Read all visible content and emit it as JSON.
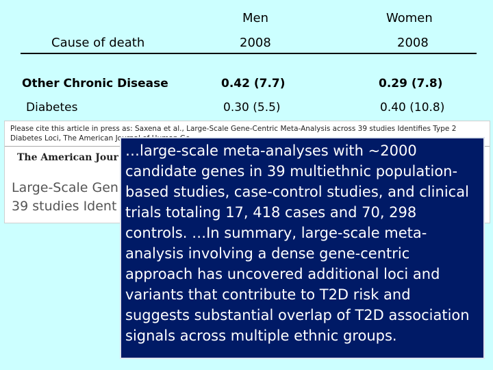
{
  "table": {
    "headers": {
      "men": "Men",
      "women": "Women",
      "cause": "Cause of death",
      "men_year": "2008",
      "women_year": "2008"
    },
    "rows": [
      {
        "cause": "Other Chronic Disease",
        "men": "0.42 (7.7)",
        "women": "0.29 (7.8)"
      },
      {
        "cause": "Diabetes",
        "men": "0.30 (5.5)",
        "women": "0.40 (10.8)"
      }
    ]
  },
  "article": {
    "citation": "Please cite this article in press as: Saxena et al., Large-Scale Gene-Centric Meta-Analysis across 39 studies Identifies Type 2 Diabetes Loci, The American Journal of Human Ge",
    "journal": "The American Jour",
    "title_line1": "Large-Scale Gen",
    "title_line2": "39 studies Ident"
  },
  "quote": {
    "text": "…large-scale meta-analyses with ~2000 candidate genes in 39 multiethnic population-based studies, case-control studies, and clinical trials totaling 17, 418 cases and 70, 298 controls. …In summary, large-scale meta-analysis involving a dense gene-centric approach has uncovered additional loci and variants that contribute to T2D risk and suggests substantial overlap of T2D association signals across multiple ethnic groups."
  },
  "colors": {
    "background": "#ccffff",
    "quote_box": "#001a66",
    "quote_text": "#ffffff"
  }
}
